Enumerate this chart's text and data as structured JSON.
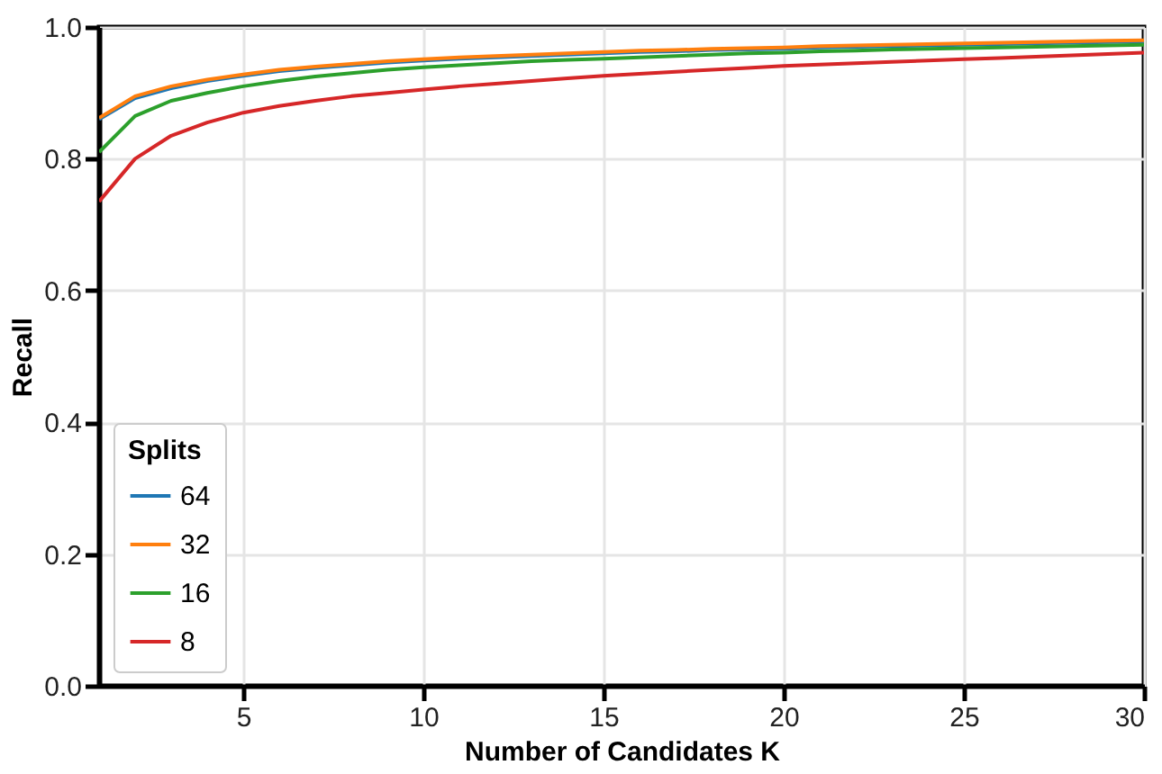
{
  "chart_data": {
    "type": "line",
    "xlabel": "Number of Candidates K",
    "ylabel": "Recall",
    "legend_title": "Splits",
    "legend": "bottom left",
    "grid": true,
    "line_style": "solid",
    "marker": "none",
    "x": [
      1,
      2,
      3,
      4,
      5,
      6,
      7,
      8,
      9,
      10,
      11,
      12,
      13,
      14,
      15,
      16,
      17,
      18,
      19,
      20,
      21,
      22,
      23,
      24,
      25,
      26,
      27,
      28,
      29,
      30
    ],
    "xlim": [
      1,
      30
    ],
    "xticks": [
      5,
      10,
      15,
      20,
      25,
      30
    ],
    "ylim": [
      0,
      1
    ],
    "yticks": [
      {
        "value": 0,
        "label": "0.0"
      },
      0.2,
      0.4,
      0.6,
      0.8,
      {
        "value": 1,
        "label": "1.0"
      }
    ],
    "series": [
      {
        "name": "64",
        "color": "#1f77b4",
        "values": [
          0.86,
          0.892,
          0.907,
          0.918,
          0.926,
          0.933,
          0.938,
          0.942,
          0.946,
          0.949,
          0.952,
          0.954,
          0.956,
          0.958,
          0.96,
          0.962,
          0.963,
          0.965,
          0.966,
          0.967,
          0.969,
          0.97,
          0.971,
          0.972,
          0.973,
          0.974,
          0.975,
          0.976,
          0.977,
          0.978
        ]
      },
      {
        "name": "32",
        "color": "#ff7f0e",
        "values": [
          0.862,
          0.895,
          0.91,
          0.92,
          0.928,
          0.935,
          0.94,
          0.944,
          0.948,
          0.951,
          0.954,
          0.956,
          0.958,
          0.96,
          0.962,
          0.964,
          0.965,
          0.967,
          0.968,
          0.969,
          0.971,
          0.972,
          0.973,
          0.974,
          0.975,
          0.976,
          0.977,
          0.978,
          0.979,
          0.98
        ]
      },
      {
        "name": "16",
        "color": "#2ca02c",
        "values": [
          0.81,
          0.865,
          0.888,
          0.9,
          0.91,
          0.918,
          0.925,
          0.93,
          0.935,
          0.939,
          0.942,
          0.945,
          0.948,
          0.95,
          0.952,
          0.954,
          0.956,
          0.958,
          0.96,
          0.961,
          0.963,
          0.964,
          0.966,
          0.967,
          0.968,
          0.969,
          0.97,
          0.971,
          0.972,
          0.973
        ]
      },
      {
        "name": "8",
        "color": "#d62728",
        "values": [
          0.735,
          0.8,
          0.835,
          0.855,
          0.87,
          0.88,
          0.888,
          0.895,
          0.9,
          0.905,
          0.91,
          0.914,
          0.918,
          0.922,
          0.926,
          0.929,
          0.932,
          0.935,
          0.938,
          0.941,
          0.943,
          0.945,
          0.947,
          0.949,
          0.951,
          0.953,
          0.955,
          0.957,
          0.959,
          0.961
        ]
      }
    ]
  }
}
